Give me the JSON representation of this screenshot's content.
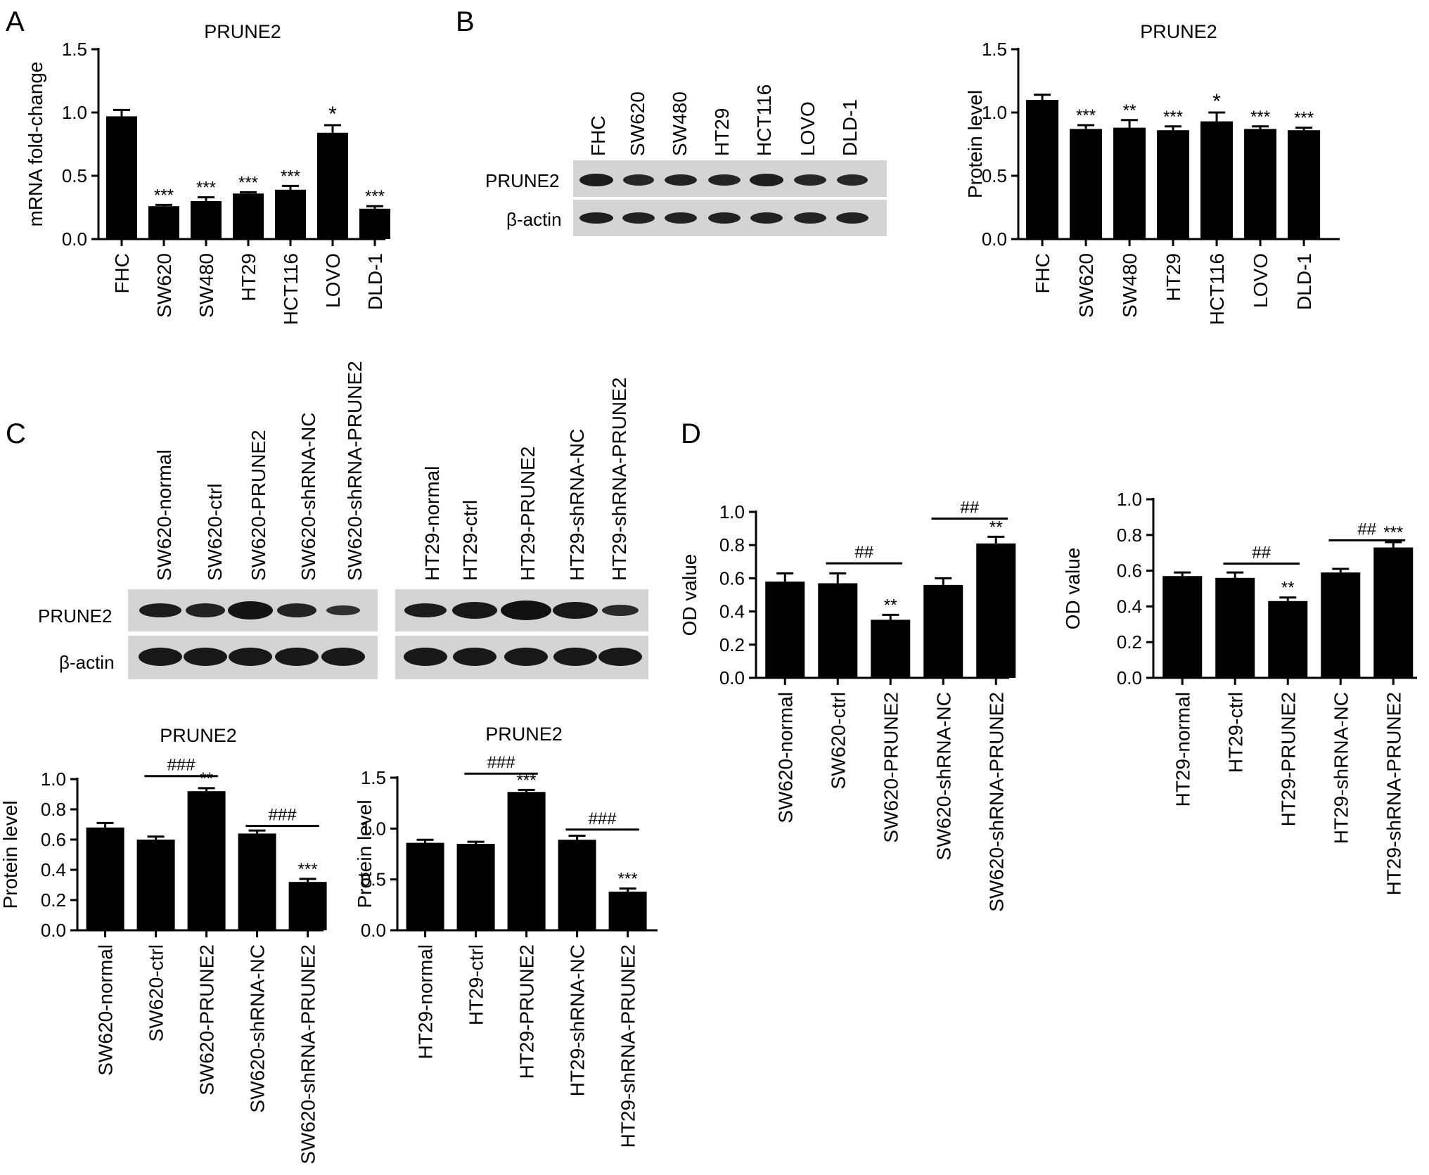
{
  "panels": {
    "A": "A",
    "B": "B",
    "C": "C",
    "D": "D"
  },
  "blots": [
    {
      "lanes": [
        "FHC",
        "SW620",
        "SW480",
        "HT29",
        "HCT116",
        "LOVO",
        "DLD-1"
      ],
      "rows": [
        "PRUNE2",
        "β-actin"
      ]
    },
    {
      "lanes": [
        "SW620-normal",
        "SW620-ctrl",
        "SW620-PRUNE2",
        "SW620-shRNA-NC",
        "SW620-shRNA-PRUNE2"
      ],
      "rows": [
        "PRUNE2",
        "β-actin"
      ]
    },
    {
      "lanes": [
        "HT29-normal",
        "HT29-ctrl",
        "HT29-PRUNE2",
        "HT29-shRNA-NC",
        "HT29-shRNA-PRUNE2"
      ],
      "rows": []
    }
  ],
  "chart_data": [
    {
      "id": "A",
      "type": "bar",
      "title": "PRUNE2",
      "ylabel": "mRNA fold-change",
      "ylim": [
        0,
        1.5
      ],
      "yticks": [
        "0.0",
        "0.5",
        "1.0",
        "1.5"
      ],
      "categories": [
        "FHC",
        "SW620",
        "SW480",
        "HT29",
        "HCT116",
        "LOVO",
        "DLD-1"
      ],
      "values": [
        0.97,
        0.26,
        0.3,
        0.36,
        0.39,
        0.84,
        0.24
      ],
      "errors": [
        0.05,
        0.01,
        0.03,
        0.01,
        0.03,
        0.06,
        0.02
      ],
      "significance": [
        "",
        "***",
        "***",
        "***",
        "***",
        "*",
        "***"
      ],
      "comparisons": []
    },
    {
      "id": "B",
      "type": "bar",
      "title": "PRUNE2",
      "ylabel": "Protein level",
      "ylim": [
        0,
        1.5
      ],
      "yticks": [
        "0.0",
        "0.5",
        "1.0",
        "1.5"
      ],
      "categories": [
        "FHC",
        "SW620",
        "SW480",
        "HT29",
        "HCT116",
        "LOVO",
        "DLD-1"
      ],
      "values": [
        1.1,
        0.87,
        0.88,
        0.86,
        0.93,
        0.87,
        0.86
      ],
      "errors": [
        0.04,
        0.03,
        0.06,
        0.03,
        0.07,
        0.02,
        0.02
      ],
      "significance": [
        "",
        "***",
        "**",
        "***",
        "*",
        "***",
        "***"
      ],
      "comparisons": []
    },
    {
      "id": "C-SW620",
      "type": "bar",
      "title": "PRUNE2",
      "ylabel": "Protein level",
      "ylim": [
        0,
        1.0
      ],
      "yticks": [
        "0.0",
        "0.2",
        "0.4",
        "0.6",
        "0.8",
        "1.0"
      ],
      "categories": [
        "SW620-normal",
        "SW620-ctrl",
        "SW620-PRUNE2",
        "SW620-shRNA-NC",
        "SW620-shRNA-PRUNE2"
      ],
      "values": [
        0.68,
        0.6,
        0.92,
        0.64,
        0.32
      ],
      "errors": [
        0.03,
        0.02,
        0.02,
        0.02,
        0.02
      ],
      "significance": [
        "",
        "",
        "**",
        "",
        "***"
      ],
      "comparisons": [
        {
          "from": 1,
          "to": 2,
          "label": "###",
          "y": 1.02
        },
        {
          "from": 3,
          "to": 4,
          "label": "###",
          "y": 0.69
        }
      ]
    },
    {
      "id": "C-HT29",
      "type": "bar",
      "title": "PRUNE2",
      "ylabel": "Protein level",
      "ylim": [
        0,
        1.5
      ],
      "yticks": [
        "0.0",
        "0.5",
        "1.0",
        "1.5"
      ],
      "categories": [
        "HT29-normal",
        "HT29-ctrl",
        "HT29-PRUNE2",
        "HT29-shRNA-NC",
        "HT29-shRNA-PRUNE2"
      ],
      "values": [
        0.86,
        0.85,
        1.36,
        0.89,
        0.38
      ],
      "errors": [
        0.03,
        0.02,
        0.02,
        0.04,
        0.03
      ],
      "significance": [
        "",
        "",
        "***",
        "",
        "***"
      ],
      "comparisons": [
        {
          "from": 1,
          "to": 2,
          "label": "###",
          "y": 1.54
        },
        {
          "from": 3,
          "to": 4,
          "label": "###",
          "y": 0.99
        }
      ]
    },
    {
      "id": "D-SW620",
      "type": "bar",
      "title": "",
      "ylabel": "OD value",
      "ylim": [
        0,
        1.0
      ],
      "yticks": [
        "0.0",
        "0.2",
        "0.4",
        "0.6",
        "0.8",
        "1.0"
      ],
      "categories": [
        "SW620-normal",
        "SW620-ctrl",
        "SW620-PRUNE2",
        "SW620-shRNA-NC",
        "SW620-shRNA-PRUNE2"
      ],
      "values": [
        0.58,
        0.57,
        0.35,
        0.56,
        0.81
      ],
      "errors": [
        0.05,
        0.06,
        0.03,
        0.04,
        0.04
      ],
      "significance": [
        "",
        "",
        "**",
        "",
        "**"
      ],
      "comparisons": [
        {
          "from": 1,
          "to": 2,
          "label": "##",
          "y": 0.69
        },
        {
          "from": 3,
          "to": 4,
          "label": "##",
          "y": 0.96
        }
      ]
    },
    {
      "id": "D-HT29",
      "type": "bar",
      "title": "",
      "ylabel": "OD value",
      "ylim": [
        0,
        1.0
      ],
      "yticks": [
        "0.0",
        "0.2",
        "0.4",
        "0.6",
        "0.8",
        "1.0"
      ],
      "categories": [
        "HT29-normal",
        "HT29-ctrl",
        "HT29-PRUNE2",
        "HT29-shRNA-NC",
        "HT29-shRNA-PRUNE2"
      ],
      "values": [
        0.57,
        0.56,
        0.43,
        0.59,
        0.73
      ],
      "errors": [
        0.02,
        0.03,
        0.02,
        0.02,
        0.03
      ],
      "significance": [
        "",
        "",
        "**",
        "",
        "***"
      ],
      "comparisons": [
        {
          "from": 1,
          "to": 2,
          "label": "##",
          "y": 0.64
        },
        {
          "from": 3,
          "to": 4,
          "label": "##",
          "y": 0.77
        }
      ]
    }
  ]
}
